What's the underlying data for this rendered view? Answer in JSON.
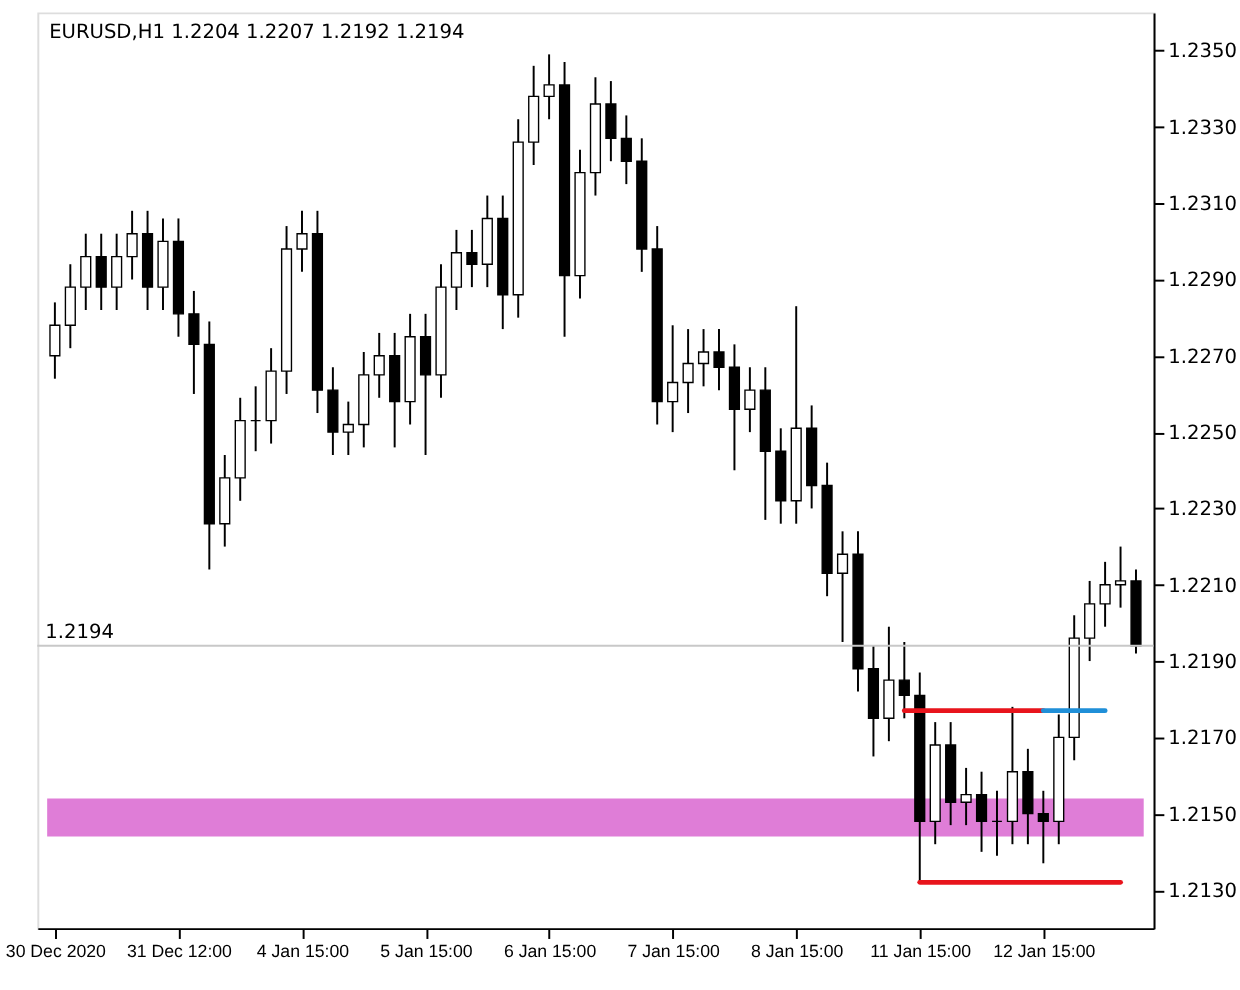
{
  "chart_data": {
    "type": "candlestick",
    "title": "EURUSD,H1  1.2204 1.2207 1.2192 1.2194",
    "color": "#000000",
    "categories": [
      "30 Dec 2020",
      null,
      null,
      null,
      null,
      null,
      null,
      null,
      "31 Dec 12:00",
      null,
      null,
      null,
      null,
      null,
      null,
      null,
      "4 Jan 15:00",
      null,
      null,
      null,
      null,
      null,
      null,
      null,
      "5 Jan 15:00",
      null,
      null,
      null,
      null,
      null,
      null,
      null,
      "6 Jan 15:00",
      null,
      null,
      null,
      null,
      null,
      null,
      null,
      "7 Jan 15:00",
      null,
      null,
      null,
      null,
      null,
      null,
      null,
      "8 Jan 15:00",
      null,
      null,
      null,
      null,
      null,
      null,
      null,
      "11 Jan 15:00",
      null,
      null,
      null,
      null,
      null,
      null,
      null,
      "12 Jan 15:00",
      null,
      null,
      null,
      null,
      null,
      null
    ],
    "ohlc": [
      [
        1.227,
        1.2284,
        1.2264,
        1.2278
      ],
      [
        1.2278,
        1.2294,
        1.2272,
        1.2288
      ],
      [
        1.2288,
        1.2302,
        1.2282,
        1.2296
      ],
      [
        1.2296,
        1.2302,
        1.2282,
        1.2288
      ],
      [
        1.2288,
        1.2302,
        1.2282,
        1.2296
      ],
      [
        1.2296,
        1.2308,
        1.229,
        1.2302
      ],
      [
        1.2302,
        1.2308,
        1.2282,
        1.2288
      ],
      [
        1.2288,
        1.2306,
        1.2282,
        1.23
      ],
      [
        1.23,
        1.2306,
        1.2275,
        1.2281
      ],
      [
        1.2281,
        1.2287,
        1.226,
        1.2273
      ],
      [
        1.2273,
        1.2279,
        1.2214,
        1.2226
      ],
      [
        1.2226,
        1.2244,
        1.222,
        1.2238
      ],
      [
        1.2238,
        1.2259,
        1.2232,
        1.2253
      ],
      [
        1.2253,
        1.2262,
        1.2245,
        1.2253
      ],
      [
        1.2253,
        1.2272,
        1.2247,
        1.2266
      ],
      [
        1.2266,
        1.2304,
        1.226,
        1.2298
      ],
      [
        1.2298,
        1.2308,
        1.2292,
        1.2302
      ],
      [
        1.2302,
        1.2308,
        1.2255,
        1.2261
      ],
      [
        1.2261,
        1.2267,
        1.2244,
        1.225
      ],
      [
        1.225,
        1.2258,
        1.2244,
        1.2252
      ],
      [
        1.2252,
        1.2271,
        1.2246,
        1.2265
      ],
      [
        1.2265,
        1.2276,
        1.2259,
        1.227
      ],
      [
        1.227,
        1.2276,
        1.2246,
        1.2258
      ],
      [
        1.2258,
        1.2281,
        1.2252,
        1.2275
      ],
      [
        1.2275,
        1.2281,
        1.2244,
        1.2265
      ],
      [
        1.2265,
        1.2294,
        1.2259,
        1.2288
      ],
      [
        1.2288,
        1.2303,
        1.2282,
        1.2297
      ],
      [
        1.2297,
        1.2303,
        1.2288,
        1.2294
      ],
      [
        1.2294,
        1.2312,
        1.2288,
        1.2306
      ],
      [
        1.2306,
        1.2312,
        1.2277,
        1.2286
      ],
      [
        1.2286,
        1.2332,
        1.228,
        1.2326
      ],
      [
        1.2326,
        1.2346,
        1.232,
        1.2338
      ],
      [
        1.2338,
        1.2349,
        1.2332,
        1.2341
      ],
      [
        1.2341,
        1.2347,
        1.2275,
        1.2291
      ],
      [
        1.2291,
        1.2324,
        1.2285,
        1.2318
      ],
      [
        1.2318,
        1.2343,
        1.2312,
        1.2336
      ],
      [
        1.2336,
        1.2342,
        1.2321,
        1.2327
      ],
      [
        1.2327,
        1.2333,
        1.2315,
        1.2321
      ],
      [
        1.2321,
        1.2327,
        1.2292,
        1.2298
      ],
      [
        1.2298,
        1.2304,
        1.2252,
        1.2258
      ],
      [
        1.2258,
        1.2278,
        1.225,
        1.2263
      ],
      [
        1.2263,
        1.2277,
        1.2255,
        1.2268
      ],
      [
        1.2268,
        1.2277,
        1.2262,
        1.2271
      ],
      [
        1.2271,
        1.2277,
        1.2261,
        1.2267
      ],
      [
        1.2267,
        1.2273,
        1.224,
        1.2256
      ],
      [
        1.2256,
        1.2267,
        1.225,
        1.2261
      ],
      [
        1.2261,
        1.2267,
        1.2227,
        1.2245
      ],
      [
        1.2245,
        1.2251,
        1.2226,
        1.2232
      ],
      [
        1.2232,
        1.2283,
        1.2226,
        1.2251
      ],
      [
        1.2251,
        1.2257,
        1.223,
        1.2236
      ],
      [
        1.2236,
        1.2242,
        1.2207,
        1.2213
      ],
      [
        1.2213,
        1.2224,
        1.2195,
        1.2218
      ],
      [
        1.2218,
        1.2224,
        1.2182,
        1.2188
      ],
      [
        1.2188,
        1.2194,
        1.2165,
        1.2175
      ],
      [
        1.2175,
        1.2199,
        1.2169,
        1.2185
      ],
      [
        1.2185,
        1.2195,
        1.2175,
        1.2181
      ],
      [
        1.2181,
        1.2187,
        1.2132,
        1.2148
      ],
      [
        1.2148,
        1.2174,
        1.2142,
        1.2168
      ],
      [
        1.2168,
        1.2174,
        1.2147,
        1.2153
      ],
      [
        1.2153,
        1.2162,
        1.2147,
        1.2155
      ],
      [
        1.2155,
        1.2161,
        1.214,
        1.2148
      ],
      [
        1.2148,
        1.2156,
        1.2139,
        1.2148
      ],
      [
        1.2148,
        1.2178,
        1.2142,
        1.2161
      ],
      [
        1.2161,
        1.2167,
        1.2142,
        1.215
      ],
      [
        1.215,
        1.2156,
        1.2137,
        1.2148
      ],
      [
        1.2148,
        1.2176,
        1.2142,
        1.217
      ],
      [
        1.217,
        1.2202,
        1.2164,
        1.2196
      ],
      [
        1.2196,
        1.2211,
        1.219,
        1.2205
      ],
      [
        1.2205,
        1.2216,
        1.2199,
        1.221
      ],
      [
        1.221,
        1.222,
        1.2204,
        1.2211
      ],
      [
        1.2211,
        1.2214,
        1.2192,
        1.2194
      ]
    ],
    "series": [
      {
        "type": "line",
        "color": "#e8141c",
        "values": [
          null,
          null,
          null,
          null,
          null,
          null,
          null,
          null,
          null,
          null,
          null,
          null,
          null,
          null,
          null,
          null,
          null,
          null,
          null,
          null,
          null,
          null,
          null,
          null,
          null,
          null,
          null,
          null,
          null,
          null,
          null,
          null,
          null,
          null,
          null,
          null,
          null,
          null,
          null,
          null,
          null,
          null,
          null,
          null,
          null,
          null,
          null,
          null,
          null,
          null,
          null,
          null,
          null,
          null,
          null,
          1.2177,
          1.2177,
          1.2177,
          1.2177,
          1.2177,
          1.2177,
          1.2177,
          1.2177,
          1.2177,
          1.2177,
          null,
          null,
          null,
          null,
          null,
          null
        ]
      },
      {
        "type": "line",
        "color": "#1f8fd8",
        "values": [
          null,
          null,
          null,
          null,
          null,
          null,
          null,
          null,
          null,
          null,
          null,
          null,
          null,
          null,
          null,
          null,
          null,
          null,
          null,
          null,
          null,
          null,
          null,
          null,
          null,
          null,
          null,
          null,
          null,
          null,
          null,
          null,
          null,
          null,
          null,
          null,
          null,
          null,
          null,
          null,
          null,
          null,
          null,
          null,
          null,
          null,
          null,
          null,
          null,
          null,
          null,
          null,
          null,
          null,
          null,
          null,
          null,
          null,
          null,
          null,
          null,
          null,
          null,
          null,
          1.2177,
          1.2177,
          1.2177,
          1.2177,
          1.2177,
          null,
          null
        ]
      },
      {
        "type": "line",
        "color": "#e8141c",
        "values": [
          null,
          null,
          null,
          null,
          null,
          null,
          null,
          null,
          null,
          null,
          null,
          null,
          null,
          null,
          null,
          null,
          null,
          null,
          null,
          null,
          null,
          null,
          null,
          null,
          null,
          null,
          null,
          null,
          null,
          null,
          null,
          null,
          null,
          null,
          null,
          null,
          null,
          null,
          null,
          null,
          null,
          null,
          null,
          null,
          null,
          null,
          null,
          null,
          null,
          null,
          null,
          null,
          null,
          null,
          null,
          null,
          1.2132,
          1.2132,
          1.2132,
          1.2132,
          1.2132,
          1.2132,
          1.2132,
          1.2132,
          1.2132,
          1.2132,
          1.2132,
          1.2132,
          1.2132,
          1.2132,
          null
        ]
      }
    ],
    "ylim": [
      1.212,
      1.236
    ],
    "yticks": [
      {
        "value": 1.213,
        "label": "1.2130"
      },
      {
        "value": 1.215,
        "label": "1.2150"
      },
      {
        "value": 1.217,
        "label": "1.2170"
      },
      {
        "value": 1.219,
        "label": "1.2190"
      },
      {
        "value": 1.221,
        "label": "1.2210"
      },
      {
        "value": 1.223,
        "label": "1.2230"
      },
      {
        "value": 1.225,
        "label": "1.2250"
      },
      {
        "value": 1.227,
        "label": "1.2270"
      },
      {
        "value": 1.229,
        "label": "1.2290"
      },
      {
        "value": 1.231,
        "label": "1.2310"
      },
      {
        "value": 1.233,
        "label": "1.2330"
      },
      {
        "value": 1.235,
        "label": "1.2350"
      }
    ],
    "bands": [
      {
        "axis": "y",
        "from": 1.2144,
        "to": 1.2154,
        "color": "#d966d0"
      }
    ],
    "ref_lines": [
      {
        "axis": "y",
        "value": 1.2194,
        "label": "1.2194",
        "color": "#c8c8c8"
      }
    ],
    "grid": false
  }
}
